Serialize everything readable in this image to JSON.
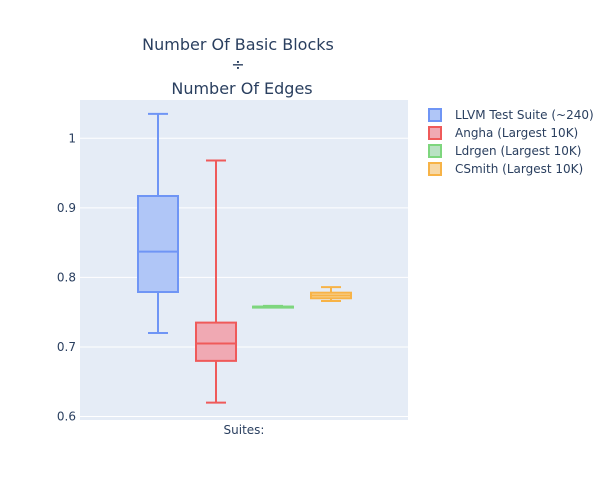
{
  "chart_data": {
    "type": "box",
    "title_lines": [
      "Number Of Basic Blocks",
      "÷",
      "Number Of Edges"
    ],
    "xlabel": "",
    "x_category": "Suites:",
    "ylabel": "",
    "ylim": [
      0.595,
      1.055
    ],
    "yticks": [
      0.6,
      0.7,
      0.8,
      0.9,
      1
    ],
    "ytick_labels": [
      "0.6",
      "0.7",
      "0.8",
      "0.9",
      "1"
    ],
    "legend_position": "top-right",
    "grid": true,
    "series": [
      {
        "name": "LLVM Test Suite (~240)",
        "color": "#6f95f5",
        "fill": "#b0c6f7",
        "min": 0.72,
        "q1": 0.779,
        "median": 0.837,
        "q3": 0.917,
        "max": 1.035
      },
      {
        "name": "Angha (Largest 10K)",
        "color": "#ef5a5a",
        "fill": "#f0a9b3",
        "min": 0.62,
        "q1": 0.68,
        "median": 0.705,
        "q3": 0.735,
        "max": 0.968
      },
      {
        "name": "Ldrgen (Largest 10K)",
        "color": "#7ed67e",
        "fill": "#b9e2c3",
        "min": 0.757,
        "q1": 0.757,
        "median": 0.758,
        "q3": 0.758,
        "max": 0.759
      },
      {
        "name": "CSmith (Largest 10K)",
        "color": "#f7b347",
        "fill": "#f7d8a6",
        "min": 0.766,
        "q1": 0.77,
        "median": 0.774,
        "q3": 0.778,
        "max": 0.786
      }
    ]
  }
}
